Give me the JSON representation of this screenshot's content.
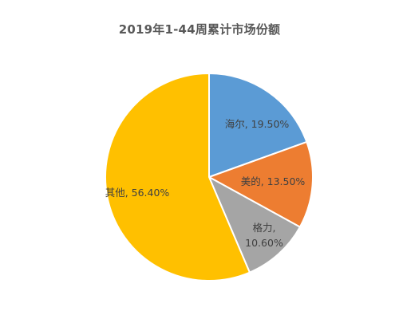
{
  "chart_data": {
    "type": "pie",
    "title": "2019年1-44周累计市场份额",
    "slices": [
      {
        "name": "海尔",
        "value": 19.5,
        "label": "海尔, 19.50%",
        "color": "#5B9BD5"
      },
      {
        "name": "美的",
        "value": 13.5,
        "label": "美的, 13.50%",
        "color": "#ED7D31"
      },
      {
        "name": "格力",
        "value": 10.6,
        "label": "格力, 10.60%",
        "label_lines": [
          "格力,",
          "10.60%"
        ],
        "color": "#A5A5A5"
      },
      {
        "name": "其他",
        "value": 56.4,
        "label": "其他, 56.40%",
        "color": "#FFC000"
      }
    ],
    "legend": "none"
  }
}
